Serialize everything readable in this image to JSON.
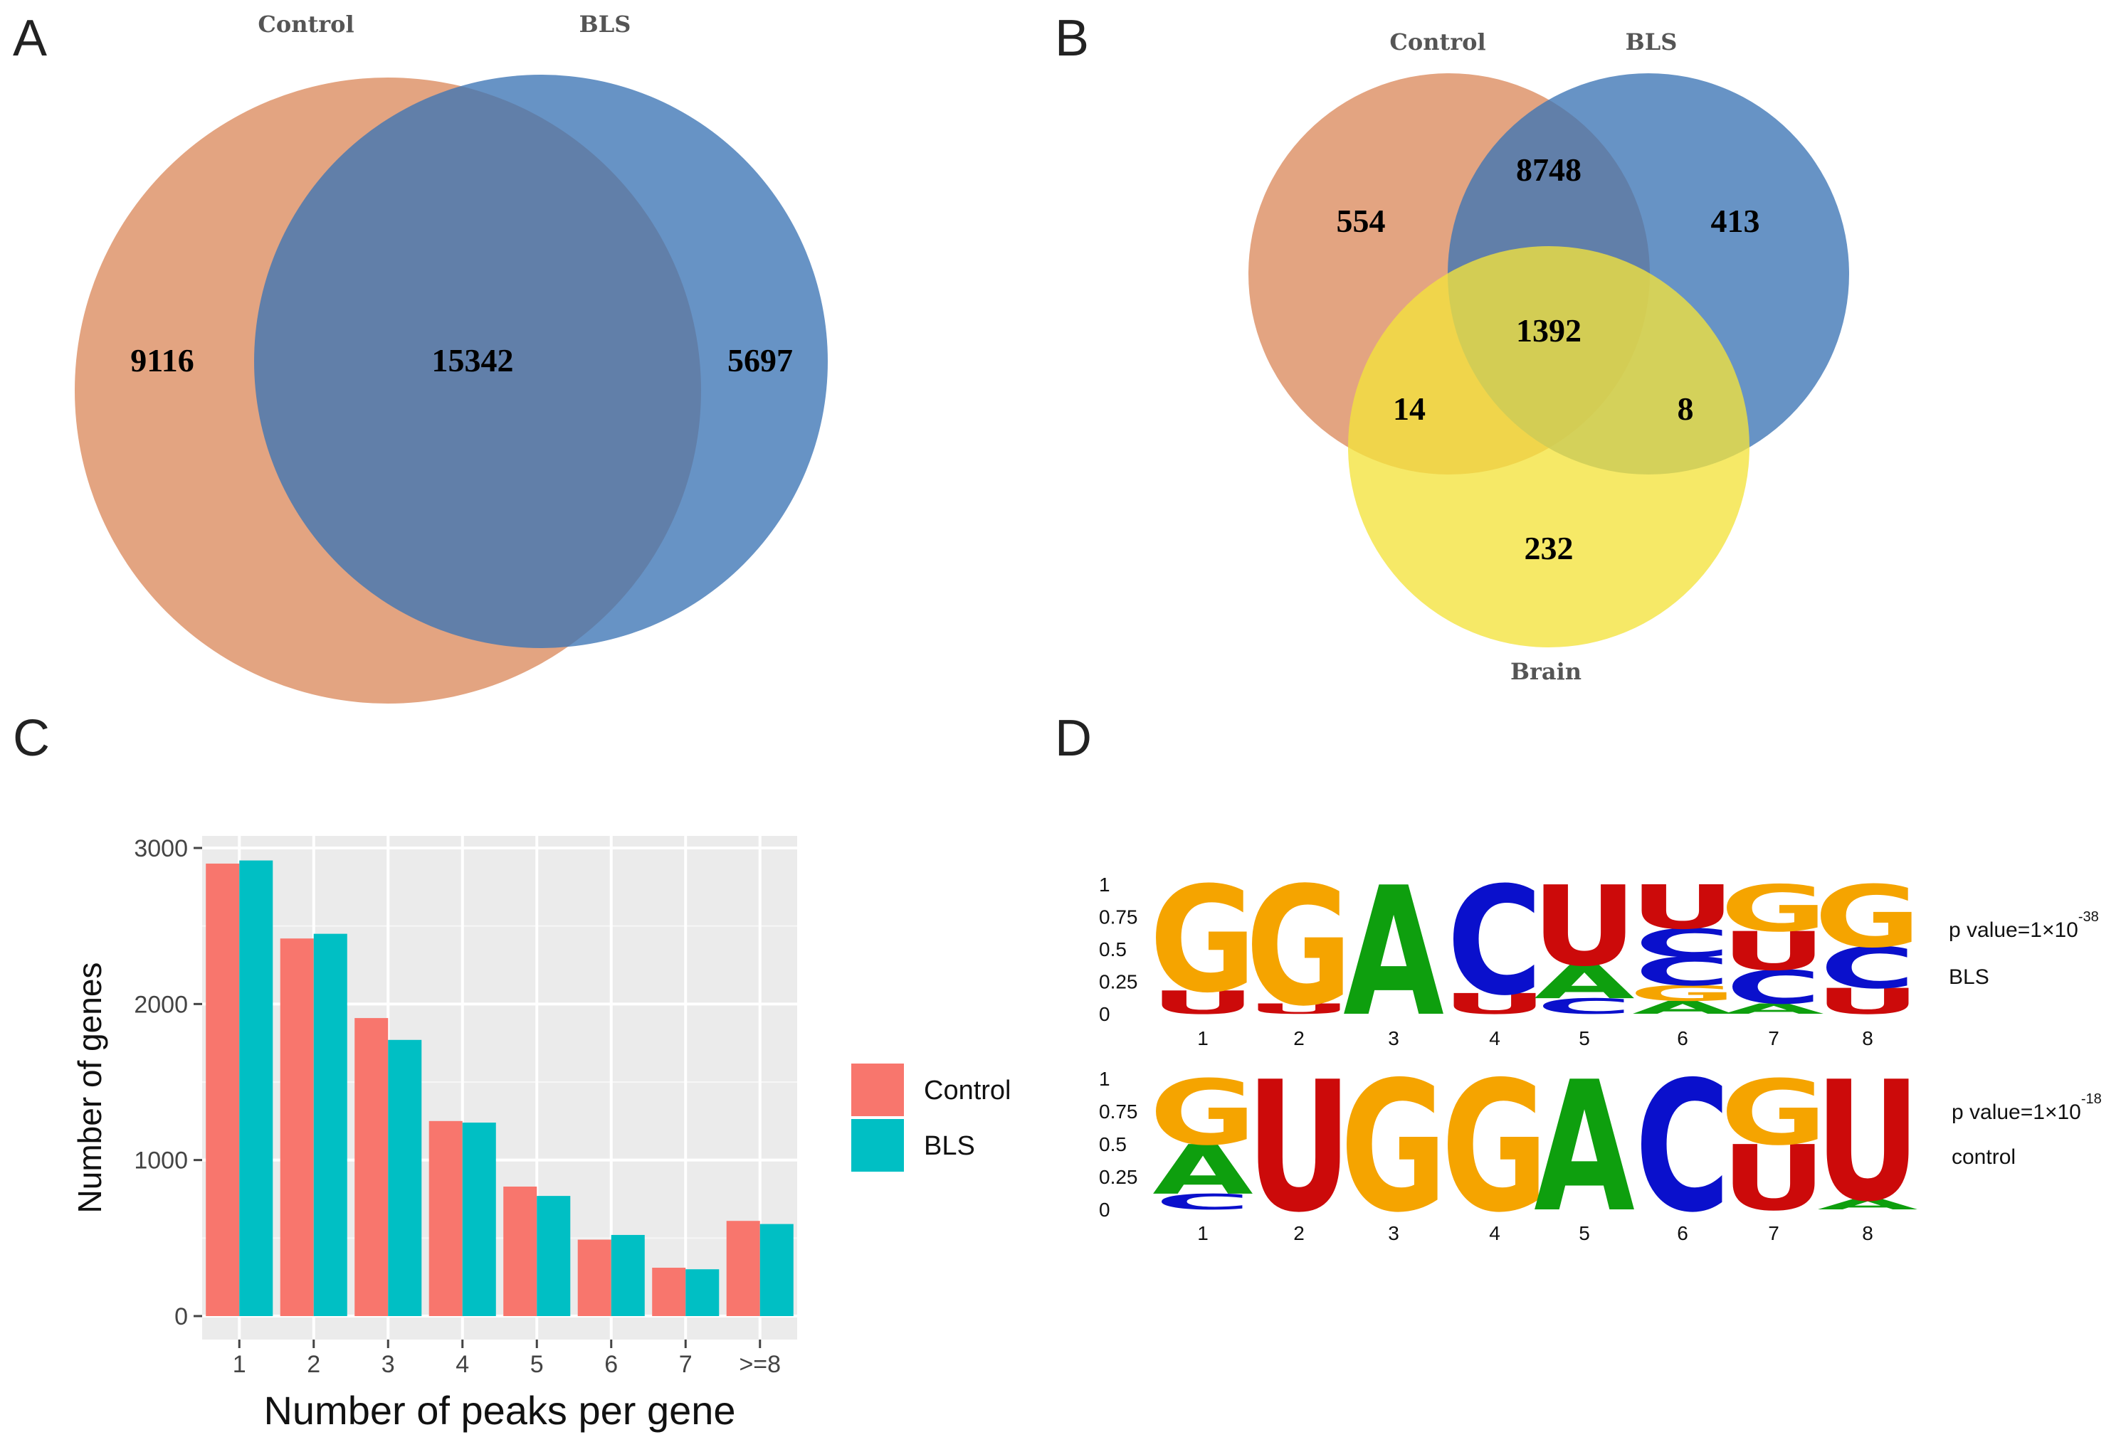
{
  "panel_labels": {
    "a": "A",
    "b": "B",
    "c": "C",
    "d": "D"
  },
  "colors": {
    "control": "#DB8A5E",
    "bls": "#3C74B5",
    "brain": "#F3E33C",
    "bar_control": "#F8766D",
    "bar_bls": "#00BFC4",
    "plot_bg": "#EBEBEB",
    "base_A": "#0E9F0E",
    "base_C": "#0A10CC",
    "base_G": "#F5A400",
    "base_U": "#CC0A0A"
  },
  "venn2": {
    "labels": {
      "control": "Control",
      "bls": "BLS"
    },
    "values": {
      "control_only": "9116",
      "both": "15342",
      "bls_only": "5697"
    }
  },
  "venn3": {
    "labels": {
      "control": "Control",
      "bls": "BLS",
      "brain": "Brain"
    },
    "values": {
      "control_only": "554",
      "control_bls": "8748",
      "bls_only": "413",
      "all_three": "1392",
      "control_brain": "14",
      "bls_brain": "8",
      "brain_only": "232"
    }
  },
  "chart_data": [
    {
      "type": "bar",
      "categories": [
        "1",
        "2",
        "3",
        "4",
        "5",
        "6",
        "7",
        ">=8"
      ],
      "series": [
        {
          "name": "Control",
          "values": [
            2900,
            2420,
            1910,
            1250,
            830,
            490,
            310,
            610
          ]
        },
        {
          "name": "BLS",
          "values": [
            2920,
            2450,
            1770,
            1240,
            770,
            520,
            300,
            590
          ]
        }
      ],
      "xlabel": "Number of peaks per gene",
      "ylabel": "Number of genes",
      "ylim": [
        0,
        3000
      ],
      "yticks": [
        "0",
        "1000",
        "2000",
        "3000"
      ],
      "grid": true,
      "legend": "right"
    }
  ],
  "logos": {
    "y_ticks": [
      "1",
      "0.75",
      "0.5",
      "0.25",
      "0"
    ],
    "positions": [
      "1",
      "2",
      "3",
      "4",
      "5",
      "6",
      "7",
      "8"
    ],
    "bls": {
      "pvalue_text": "p value=1×10",
      "exponent": "-38",
      "label": "BLS",
      "columns": [
        [
          {
            "l": "U",
            "f": 0.18
          },
          {
            "l": "G",
            "f": 0.82
          }
        ],
        [
          {
            "l": "U",
            "f": 0.08
          },
          {
            "l": "G",
            "f": 0.92
          }
        ],
        [
          {
            "l": "A",
            "f": 1.0
          }
        ],
        [
          {
            "l": "U",
            "f": 0.16
          },
          {
            "l": "C",
            "f": 0.84
          }
        ],
        [
          {
            "l": "C",
            "f": 0.12
          },
          {
            "l": "A",
            "f": 0.26
          },
          {
            "l": "U",
            "f": 0.62
          }
        ],
        [
          {
            "l": "A",
            "f": 0.1
          },
          {
            "l": "G",
            "f": 0.12
          },
          {
            "l": "C",
            "f": 0.22
          },
          {
            "l": "C",
            "f": 0.22
          },
          {
            "l": "U",
            "f": 0.34
          }
        ],
        [
          {
            "l": "A",
            "f": 0.08
          },
          {
            "l": "C",
            "f": 0.26
          },
          {
            "l": "U",
            "f": 0.3
          },
          {
            "l": "G",
            "f": 0.36
          }
        ],
        [
          {
            "l": "U",
            "f": 0.2
          },
          {
            "l": "C",
            "f": 0.32
          },
          {
            "l": "G",
            "f": 0.48
          }
        ]
      ]
    },
    "control": {
      "pvalue_text": "p value=1×10",
      "exponent": "-18",
      "label": "control",
      "columns": [
        [
          {
            "l": "C",
            "f": 0.12
          },
          {
            "l": "A",
            "f": 0.38
          },
          {
            "l": "G",
            "f": 0.5
          }
        ],
        [
          {
            "l": "U",
            "f": 1.0
          }
        ],
        [
          {
            "l": "G",
            "f": 1.0
          }
        ],
        [
          {
            "l": "G",
            "f": 1.0
          }
        ],
        [
          {
            "l": "A",
            "f": 1.0
          }
        ],
        [
          {
            "l": "C",
            "f": 1.0
          }
        ],
        [
          {
            "l": "U",
            "f": 0.5
          },
          {
            "l": "G",
            "f": 0.5
          }
        ],
        [
          {
            "l": "A",
            "f": 0.08
          },
          {
            "l": "U",
            "f": 0.92
          }
        ]
      ]
    }
  }
}
